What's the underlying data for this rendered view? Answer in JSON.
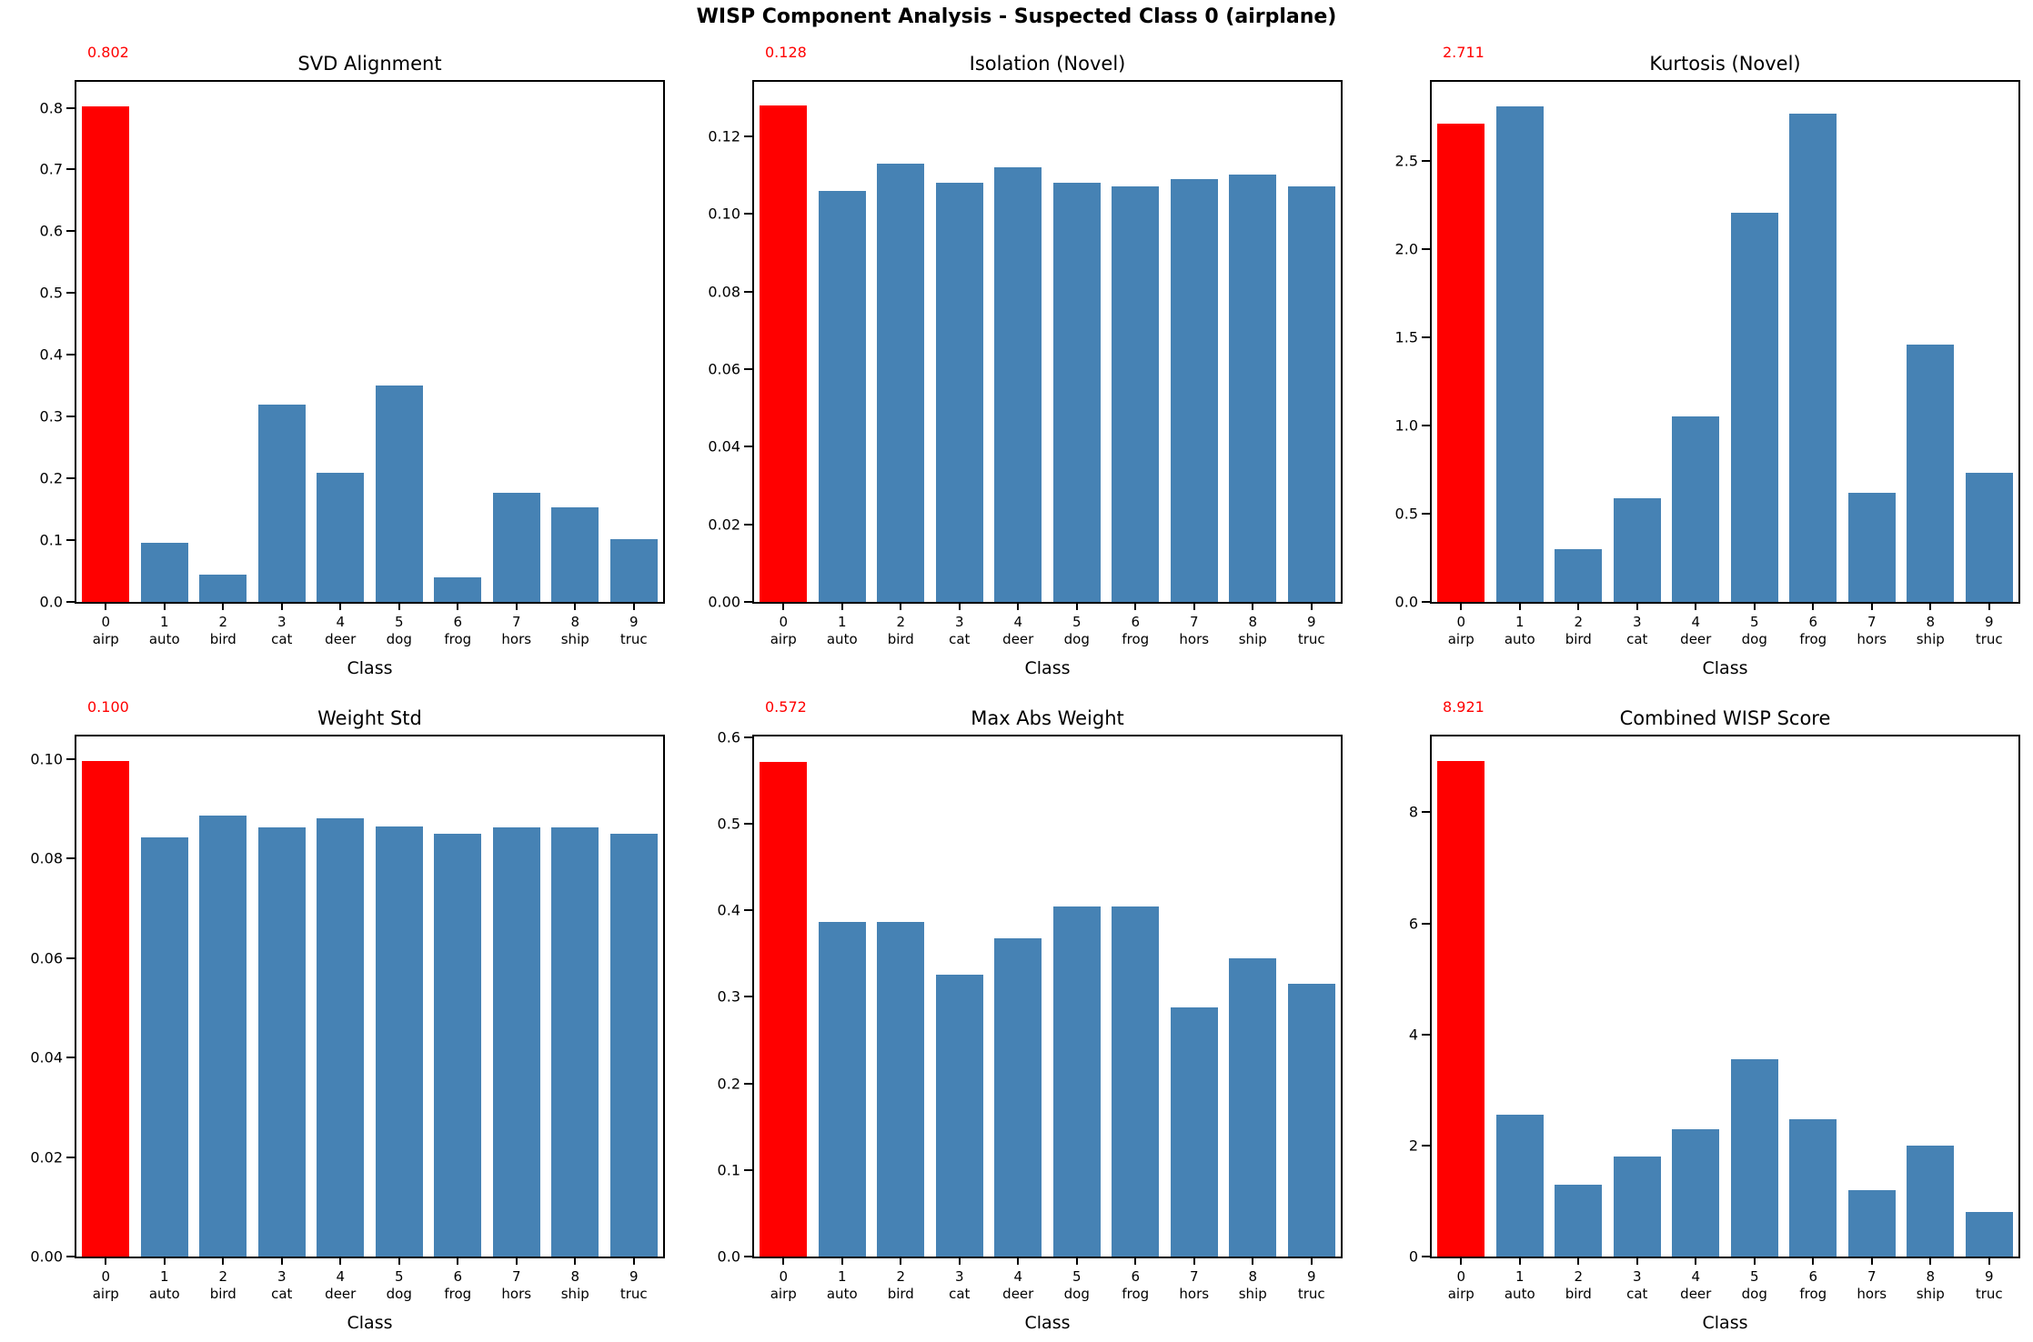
{
  "figure_title": "WISP Component Analysis - Suspected Class 0 (airplane)",
  "colors": {
    "highlight_bar": "#ff0000",
    "default_bar": "#4682b4",
    "annotation_text": "#ff0000",
    "axis": "#000000",
    "background": "#ffffff"
  },
  "classes": [
    {
      "id": "0",
      "name": "airp"
    },
    {
      "id": "1",
      "name": "auto"
    },
    {
      "id": "2",
      "name": "bird"
    },
    {
      "id": "3",
      "name": "cat"
    },
    {
      "id": "4",
      "name": "deer"
    },
    {
      "id": "5",
      "name": "dog"
    },
    {
      "id": "6",
      "name": "frog"
    },
    {
      "id": "7",
      "name": "hors"
    },
    {
      "id": "8",
      "name": "ship"
    },
    {
      "id": "9",
      "name": "truc"
    }
  ],
  "chart_data": [
    {
      "type": "bar",
      "title": "SVD Alignment",
      "annotation": "0.802",
      "xlabel": "Class",
      "categories": [
        "0 airp",
        "1 auto",
        "2 bird",
        "3 cat",
        "4 deer",
        "5 dog",
        "6 frog",
        "7 hors",
        "8 ship",
        "9 truc"
      ],
      "values": [
        0.802,
        0.095,
        0.044,
        0.32,
        0.209,
        0.351,
        0.04,
        0.176,
        0.153,
        0.102
      ],
      "highlight_index": 0,
      "ylim": [
        0,
        0.842
      ],
      "yticks": [
        0.0,
        0.1,
        0.2,
        0.3,
        0.4,
        0.5,
        0.6,
        0.7,
        0.8
      ],
      "ytick_labels": [
        "0.0",
        "0.1",
        "0.2",
        "0.3",
        "0.4",
        "0.5",
        "0.6",
        "0.7",
        "0.8"
      ],
      "grid": false,
      "legend": null
    },
    {
      "type": "bar",
      "title": "Isolation (Novel)",
      "annotation": "0.128",
      "xlabel": "Class",
      "categories": [
        "0 airp",
        "1 auto",
        "2 bird",
        "3 cat",
        "4 deer",
        "5 dog",
        "6 frog",
        "7 hors",
        "8 ship",
        "9 truc"
      ],
      "values": [
        0.128,
        0.106,
        0.113,
        0.108,
        0.112,
        0.108,
        0.107,
        0.109,
        0.11,
        0.107
      ],
      "highlight_index": 0,
      "ylim": [
        0,
        0.134
      ],
      "yticks": [
        0.0,
        0.02,
        0.04,
        0.06,
        0.08,
        0.1,
        0.12
      ],
      "ytick_labels": [
        "0.00",
        "0.02",
        "0.04",
        "0.06",
        "0.08",
        "0.10",
        "0.12"
      ],
      "grid": false,
      "legend": null
    },
    {
      "type": "bar",
      "title": "Kurtosis (Novel)",
      "annotation": "2.711",
      "xlabel": "Class",
      "categories": [
        "0 airp",
        "1 auto",
        "2 bird",
        "3 cat",
        "4 deer",
        "5 dog",
        "6 frog",
        "7 hors",
        "8 ship",
        "9 truc"
      ],
      "values": [
        2.711,
        2.81,
        0.3,
        0.59,
        1.05,
        2.21,
        2.77,
        0.62,
        1.46,
        0.73
      ],
      "highlight_index": 0,
      "ylim": [
        0,
        2.95
      ],
      "yticks": [
        0.0,
        0.5,
        1.0,
        1.5,
        2.0,
        2.5
      ],
      "ytick_labels": [
        "0.0",
        "0.5",
        "1.0",
        "1.5",
        "2.0",
        "2.5"
      ],
      "grid": false,
      "legend": null
    },
    {
      "type": "bar",
      "title": "Weight Std",
      "annotation": "0.100",
      "xlabel": "Class",
      "categories": [
        "0 airp",
        "1 auto",
        "2 bird",
        "3 cat",
        "4 deer",
        "5 dog",
        "6 frog",
        "7 hors",
        "8 ship",
        "9 truc"
      ],
      "values": [
        0.0995,
        0.0843,
        0.0886,
        0.0862,
        0.0881,
        0.0865,
        0.0849,
        0.0863,
        0.0862,
        0.085
      ],
      "highlight_index": 0,
      "ylim": [
        0,
        0.1045
      ],
      "yticks": [
        0.0,
        0.02,
        0.04,
        0.06,
        0.08,
        0.1
      ],
      "ytick_labels": [
        "0.00",
        "0.02",
        "0.04",
        "0.06",
        "0.08",
        "0.10"
      ],
      "grid": false,
      "legend": null
    },
    {
      "type": "bar",
      "title": "Max Abs Weight",
      "annotation": "0.572",
      "xlabel": "Class",
      "categories": [
        "0 airp",
        "1 auto",
        "2 bird",
        "3 cat",
        "4 deer",
        "5 dog",
        "6 frog",
        "7 hors",
        "8 ship",
        "9 truc"
      ],
      "values": [
        0.572,
        0.387,
        0.387,
        0.326,
        0.368,
        0.405,
        0.405,
        0.288,
        0.345,
        0.315
      ],
      "highlight_index": 0,
      "ylim": [
        0,
        0.601
      ],
      "yticks": [
        0.0,
        0.1,
        0.2,
        0.3,
        0.4,
        0.5,
        0.6
      ],
      "ytick_labels": [
        "0.0",
        "0.1",
        "0.2",
        "0.3",
        "0.4",
        "0.5",
        "0.6"
      ],
      "grid": false,
      "legend": null
    },
    {
      "type": "bar",
      "title": "Combined WISP Score",
      "annotation": "8.921",
      "xlabel": "Class",
      "categories": [
        "0 airp",
        "1 auto",
        "2 bird",
        "3 cat",
        "4 deer",
        "5 dog",
        "6 frog",
        "7 hors",
        "8 ship",
        "9 truc"
      ],
      "values": [
        8.921,
        2.55,
        1.3,
        1.8,
        2.3,
        3.55,
        2.48,
        1.2,
        2.0,
        0.8
      ],
      "highlight_index": 0,
      "ylim": [
        0,
        9.367
      ],
      "yticks": [
        0,
        2,
        4,
        6,
        8
      ],
      "ytick_labels": [
        "0",
        "2",
        "4",
        "6",
        "8"
      ],
      "grid": false,
      "legend": null
    }
  ]
}
